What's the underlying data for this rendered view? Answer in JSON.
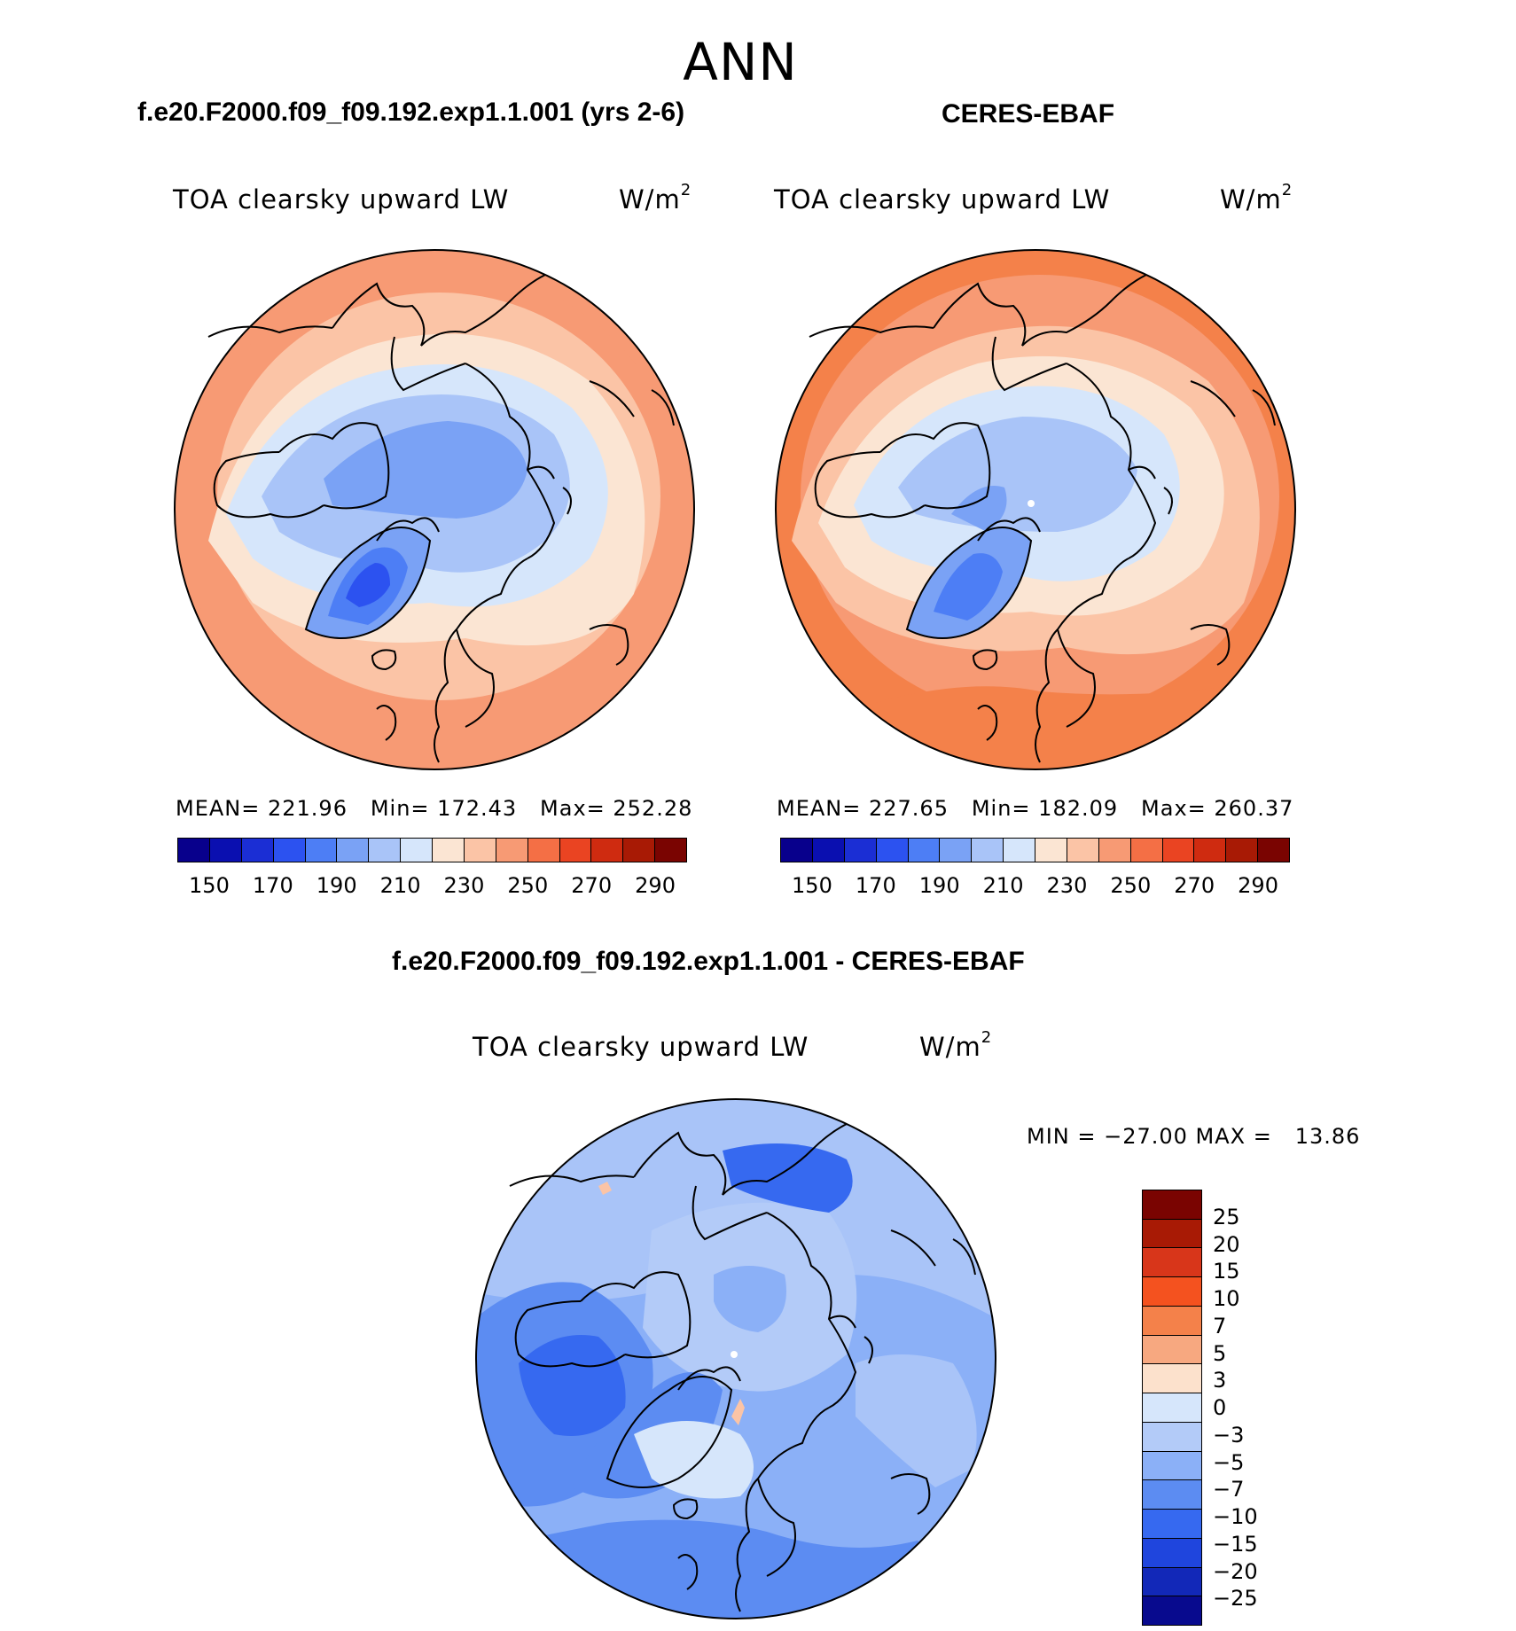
{
  "title": "ANN",
  "panels": {
    "model": {
      "case_title": "f.e20.F2000.f09_f09.192.exp1.1.001 (yrs 2-6)",
      "variable": "TOA clearsky upward LW",
      "units_base": "W/m",
      "units_exp": "2",
      "stats": "MEAN= 221.96   Min= 172.43   Max= 252.28"
    },
    "obs": {
      "case_title": "CERES-EBAF",
      "variable": "TOA clearsky upward LW",
      "units_base": "W/m",
      "units_exp": "2",
      "stats": "MEAN= 227.65   Min= 182.09   Max= 260.37"
    },
    "diff": {
      "case_title": "f.e20.F2000.f09_f09.192.exp1.1.001 - CERES-EBAF",
      "variable": "TOA clearsky upward LW",
      "units_base": "W/m",
      "units_exp": "2",
      "stats": "MIN = −27.00 MAX =   13.86"
    }
  },
  "abs_colorbar": {
    "colors": [
      "#08008c",
      "#0a0fb0",
      "#1b2ed4",
      "#2c52f0",
      "#4d7ef5",
      "#7aa2f5",
      "#a9c4f8",
      "#d6e6fb",
      "#fbe5d3",
      "#fbc4a6",
      "#f79a74",
      "#f46f45",
      "#ea4422",
      "#cf2b10",
      "#a81a05",
      "#7a0401"
    ],
    "ticks": [
      "150",
      "170",
      "190",
      "210",
      "230",
      "250",
      "270",
      "290"
    ]
  },
  "diff_colorbar": {
    "colors": [
      "#7a0401",
      "#a81a05",
      "#d8361a",
      "#f4521f",
      "#f4814a",
      "#f7a880",
      "#fce1cc",
      "#d6e6fb",
      "#b3cbf8",
      "#8bb0f7",
      "#5c8cf2",
      "#3669f0",
      "#1f45dd",
      "#1228b8",
      "#080a8e"
    ],
    "ticks": [
      "25",
      "20",
      "15",
      "10",
      "7",
      "5",
      "3",
      "0",
      "−3",
      "−5",
      "−7",
      "−10",
      "−15",
      "−20",
      "−25"
    ]
  },
  "chart_data": [
    {
      "type": "heatmap",
      "title": "f.e20.F2000.f09_f09.192.exp1.1.001 (yrs 2-6)",
      "variable": "TOA clearsky upward LW",
      "units": "W/m2",
      "projection": "polar stereographic (north)",
      "mean": 221.96,
      "min": 172.43,
      "max": 252.28,
      "color_levels": [
        150,
        160,
        170,
        180,
        190,
        200,
        210,
        220,
        230,
        240,
        250,
        260,
        270,
        280,
        290
      ]
    },
    {
      "type": "heatmap",
      "title": "CERES-EBAF",
      "variable": "TOA clearsky upward LW",
      "units": "W/m2",
      "projection": "polar stereographic (north)",
      "mean": 227.65,
      "min": 182.09,
      "max": 260.37,
      "color_levels": [
        150,
        160,
        170,
        180,
        190,
        200,
        210,
        220,
        230,
        240,
        250,
        260,
        270,
        280,
        290
      ]
    },
    {
      "type": "heatmap",
      "title": "f.e20.F2000.f09_f09.192.exp1.1.001 - CERES-EBAF",
      "variable": "TOA clearsky upward LW",
      "units": "W/m2",
      "projection": "polar stereographic (north)",
      "min": -27.0,
      "max": 13.86,
      "color_levels": [
        -25,
        -20,
        -15,
        -10,
        -7,
        -5,
        -3,
        0,
        3,
        5,
        7,
        10,
        15,
        20,
        25
      ]
    }
  ]
}
